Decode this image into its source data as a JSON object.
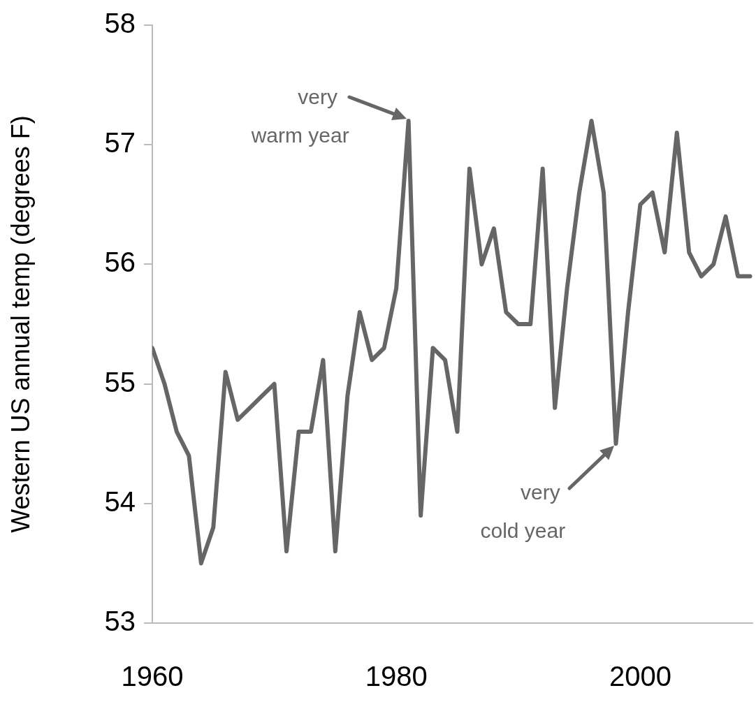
{
  "chart_data": {
    "type": "line",
    "ylabel": "Western US annual temp (degrees F)",
    "x": [
      1960,
      1961,
      1962,
      1963,
      1964,
      1965,
      1966,
      1967,
      1968,
      1969,
      1970,
      1971,
      1972,
      1973,
      1974,
      1975,
      1976,
      1977,
      1978,
      1979,
      1980,
      1981,
      1982,
      1983,
      1984,
      1985,
      1986,
      1987,
      1988,
      1989,
      1990,
      1991,
      1992,
      1993,
      1994,
      1995,
      1996,
      1997,
      1998,
      1999,
      2000,
      2001,
      2002,
      2003,
      2004,
      2005,
      2006,
      2007,
      2008,
      2009
    ],
    "series": [
      {
        "color": "#666666",
        "values": [
          55.3,
          55.0,
          54.6,
          54.4,
          53.5,
          53.8,
          55.1,
          54.7,
          54.8,
          54.9,
          55.0,
          53.6,
          54.6,
          54.6,
          55.2,
          53.6,
          54.9,
          55.6,
          55.2,
          55.3,
          55.8,
          57.2,
          53.9,
          55.3,
          55.2,
          54.6,
          56.8,
          56.0,
          56.3,
          55.6,
          55.5,
          55.5,
          56.8,
          54.8,
          55.8,
          56.6,
          57.2,
          56.6,
          54.5,
          55.6,
          56.5,
          56.6,
          56.1,
          57.1,
          56.1,
          55.9,
          56.0,
          56.4,
          55.9,
          55.9
        ]
      }
    ],
    "xlim": [
      1960,
      2009.2
    ],
    "xticks": [
      1960,
      1980,
      2000
    ],
    "ylim": [
      53,
      58
    ],
    "yticks": [
      53,
      54,
      55,
      56,
      57,
      58
    ],
    "grid": false,
    "legend": false,
    "marker": "none",
    "line_style": "solid",
    "annotations": [
      {
        "text": "very warm year",
        "x": 1981,
        "y": 57.2
      },
      {
        "text": "very cold year",
        "x": 1998,
        "y": 54.5
      }
    ]
  }
}
